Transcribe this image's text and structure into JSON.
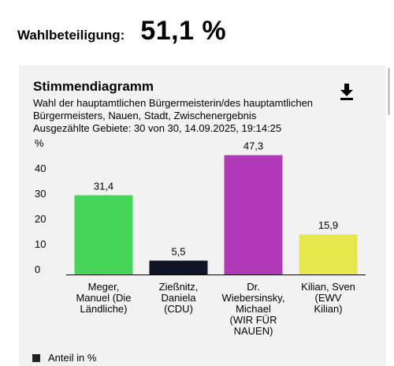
{
  "turnout": {
    "label": "Wahlbeteiligung:",
    "value": "51,1 %"
  },
  "panel": {
    "title": "Stimmendiagramm",
    "subtitle_lines": [
      "Wahl der hauptamtlichen Bürgermeisterin/des hauptamtlichen",
      "Bürgermeisters, Nauen, Stadt, Zwischenergebnis",
      "Ausgezählte Gebiete: 30 von 30, 14.09.2025, 19:14:25"
    ],
    "download_icon": "download-icon"
  },
  "chart_data": {
    "type": "bar",
    "ylabel": "%",
    "ylim": [
      0,
      50
    ],
    "yticks": [
      "0",
      "10",
      "20",
      "30",
      "40"
    ],
    "categories": [
      [
        "Meger,",
        "Manuel (Die",
        "Ländliche)"
      ],
      [
        "Zießnitz,",
        "Daniela",
        "(CDU)"
      ],
      [
        "Dr.",
        "Wiebersinsky,",
        "Michael",
        "(WIR FÜR",
        "NAUEN)"
      ],
      [
        "Kilian, Sven",
        "(EWV",
        "Kilian)"
      ]
    ],
    "values": [
      31.4,
      5.5,
      47.3,
      15.9
    ],
    "value_labels": [
      "31,4",
      "5,5",
      "47,3",
      "15,9"
    ],
    "colors": [
      "#47d65a",
      "#0f1525",
      "#b23ab8",
      "#e7e84d"
    ],
    "legend": "Anteil in %",
    "legend_color": "#222222",
    "grid": false
  }
}
